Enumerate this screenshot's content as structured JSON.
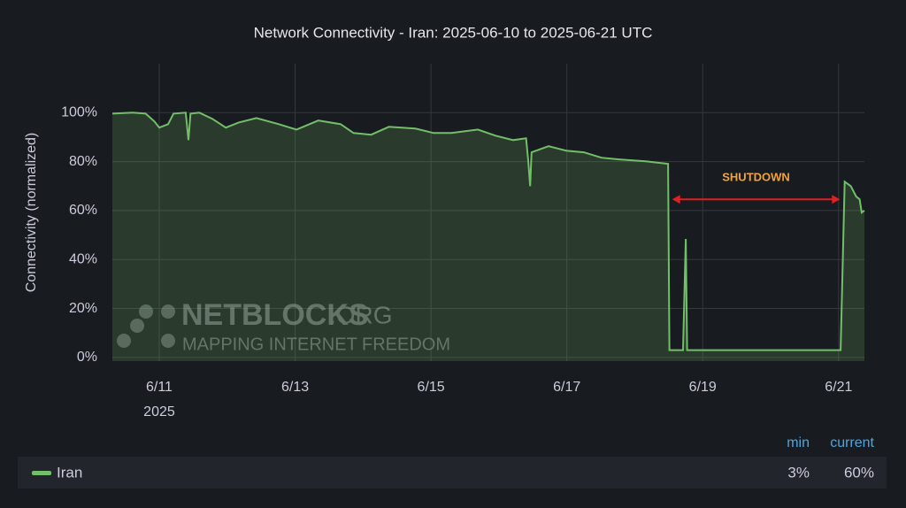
{
  "chart_data": {
    "type": "line",
    "title": "Network Connectivity - Iran: 2025-06-10 to 2025-06-21 UTC",
    "y_label": "Connectivity (normalized)",
    "x": [
      10.31,
      10.61,
      10.8,
      10.93,
      11.0,
      11.13,
      11.21,
      11.39,
      11.43,
      11.46,
      11.59,
      11.78,
      11.98,
      12.17,
      12.43,
      12.76,
      13.02,
      13.34,
      13.67,
      13.86,
      14.12,
      14.38,
      14.77,
      15.04,
      15.3,
      15.69,
      15.95,
      16.21,
      16.4,
      16.43,
      16.46,
      16.48,
      16.73,
      16.99,
      17.25,
      17.51,
      17.77,
      18.16,
      18.49,
      18.51,
      18.61,
      18.71,
      18.75,
      18.77,
      19.07,
      19.72,
      20.38,
      21.03,
      21.09,
      21.18,
      21.26,
      21.31,
      21.34,
      21.38
    ],
    "series": [
      {
        "name": "Iran",
        "color": "#73bf69",
        "values": [
          99.6,
          100,
          99.6,
          96.4,
          93.9,
          95.3,
          99.6,
          100,
          88.8,
          99.6,
          100,
          97.5,
          93.9,
          96,
          97.8,
          95.3,
          93.1,
          96.8,
          95.3,
          91.7,
          91,
          94.2,
          93.5,
          91.7,
          91.7,
          93.1,
          90.6,
          88.8,
          89.5,
          80.9,
          70,
          83.8,
          86.3,
          84.5,
          83.8,
          81.6,
          80.9,
          80.1,
          79.1,
          3,
          3,
          3,
          48.4,
          3,
          3,
          3,
          3,
          3,
          71.8,
          70,
          65.7,
          64.6,
          59.2,
          60
        ]
      }
    ],
    "xlim": [
      10.31,
      21.38
    ],
    "ylim": [
      -1.5,
      120
    ],
    "xticks": [
      {
        "value": 11,
        "label": "6/11"
      },
      {
        "value": 13,
        "label": "6/13"
      },
      {
        "value": 15,
        "label": "6/15"
      },
      {
        "value": 17,
        "label": "6/17"
      },
      {
        "value": 19,
        "label": "6/19"
      },
      {
        "value": 21,
        "label": "6/21"
      }
    ],
    "x_sublabel": {
      "value": 11,
      "label": "2025"
    },
    "yticks": [
      {
        "value": 0,
        "label": "0%"
      },
      {
        "value": 20,
        "label": "20%"
      },
      {
        "value": 40,
        "label": "40%"
      },
      {
        "value": 60,
        "label": "60%"
      },
      {
        "value": 80,
        "label": "80%"
      },
      {
        "value": 100,
        "label": "100%"
      }
    ],
    "grid": true,
    "annotation": {
      "text": "SHUTDOWN",
      "x": [
        18.55,
        21.02
      ],
      "y": 64.6
    },
    "watermark": {
      "brand": "NETBLOCKS",
      "suffix": ".ORG",
      "tagline": "MAPPING INTERNET FREEDOM"
    },
    "legend_stats": {
      "columns": [
        "min",
        "current"
      ],
      "values": [
        3,
        60
      ],
      "value_labels": [
        "3%",
        "60%"
      ]
    }
  }
}
